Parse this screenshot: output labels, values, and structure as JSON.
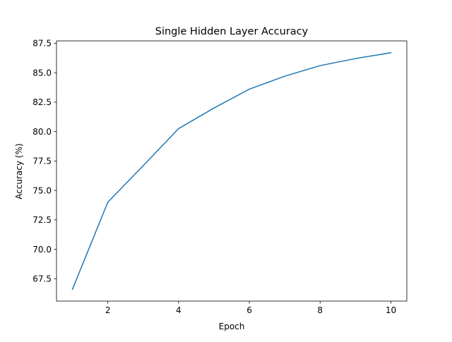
{
  "chart_data": {
    "type": "line",
    "title": "Single Hidden Layer Accuracy",
    "xlabel": "Epoch",
    "ylabel": "Accuracy (%)",
    "xlim": [
      0.55,
      10.45
    ],
    "ylim": [
      65.6,
      87.7
    ],
    "xticks": [
      2,
      4,
      6,
      8,
      10
    ],
    "yticks": [
      67.5,
      70.0,
      72.5,
      75.0,
      77.5,
      80.0,
      82.5,
      85.0,
      87.5
    ],
    "grid": false,
    "series": [
      {
        "color": "#1f77b4",
        "x": [
          1,
          2,
          3,
          4,
          5,
          6,
          7,
          8,
          9,
          10
        ],
        "y": [
          66.6,
          74.0,
          77.1,
          80.25,
          82.0,
          83.6,
          84.7,
          85.6,
          86.2,
          86.7
        ]
      }
    ]
  }
}
